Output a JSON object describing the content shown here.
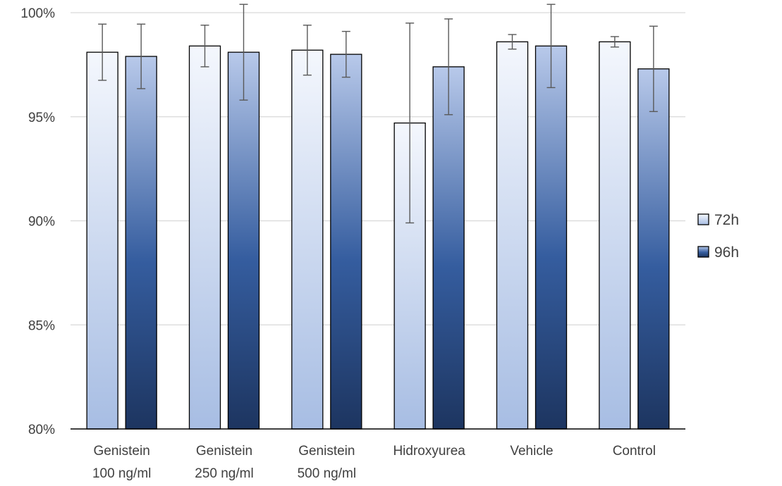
{
  "chart_data": {
    "type": "bar",
    "title": "",
    "xlabel": "",
    "ylabel": "",
    "ylim": [
      0.8,
      1.0
    ],
    "yticks": [
      "80%",
      "85%",
      "90%",
      "95%",
      "100%"
    ],
    "ytick_values": [
      0.8,
      0.85,
      0.9,
      0.95,
      1.0
    ],
    "grid": true,
    "legend_position": "right",
    "categories": [
      [
        "Genistein",
        "100 ng/ml"
      ],
      [
        "Genistein",
        "250 ng/ml"
      ],
      [
        "Genistein",
        "500 ng/ml"
      ],
      [
        "Hidroxyurea"
      ],
      [
        "Vehicle"
      ],
      [
        "Control"
      ]
    ],
    "series": [
      {
        "name": "72h",
        "values": [
          0.981,
          0.984,
          0.982,
          0.947,
          0.986,
          0.986
        ],
        "error": [
          0.0135,
          0.01,
          0.012,
          0.048,
          0.0035,
          0.0025
        ],
        "gradient": [
          "#f4f7fd",
          "#a7bde3"
        ]
      },
      {
        "name": "96h",
        "values": [
          0.979,
          0.981,
          0.98,
          0.974,
          0.984,
          0.973
        ],
        "error": [
          0.0155,
          0.023,
          0.011,
          0.023,
          0.02,
          0.0205
        ],
        "gradient": [
          "#b8c9ea",
          "#2b5192",
          "#1d3560"
        ]
      }
    ]
  }
}
